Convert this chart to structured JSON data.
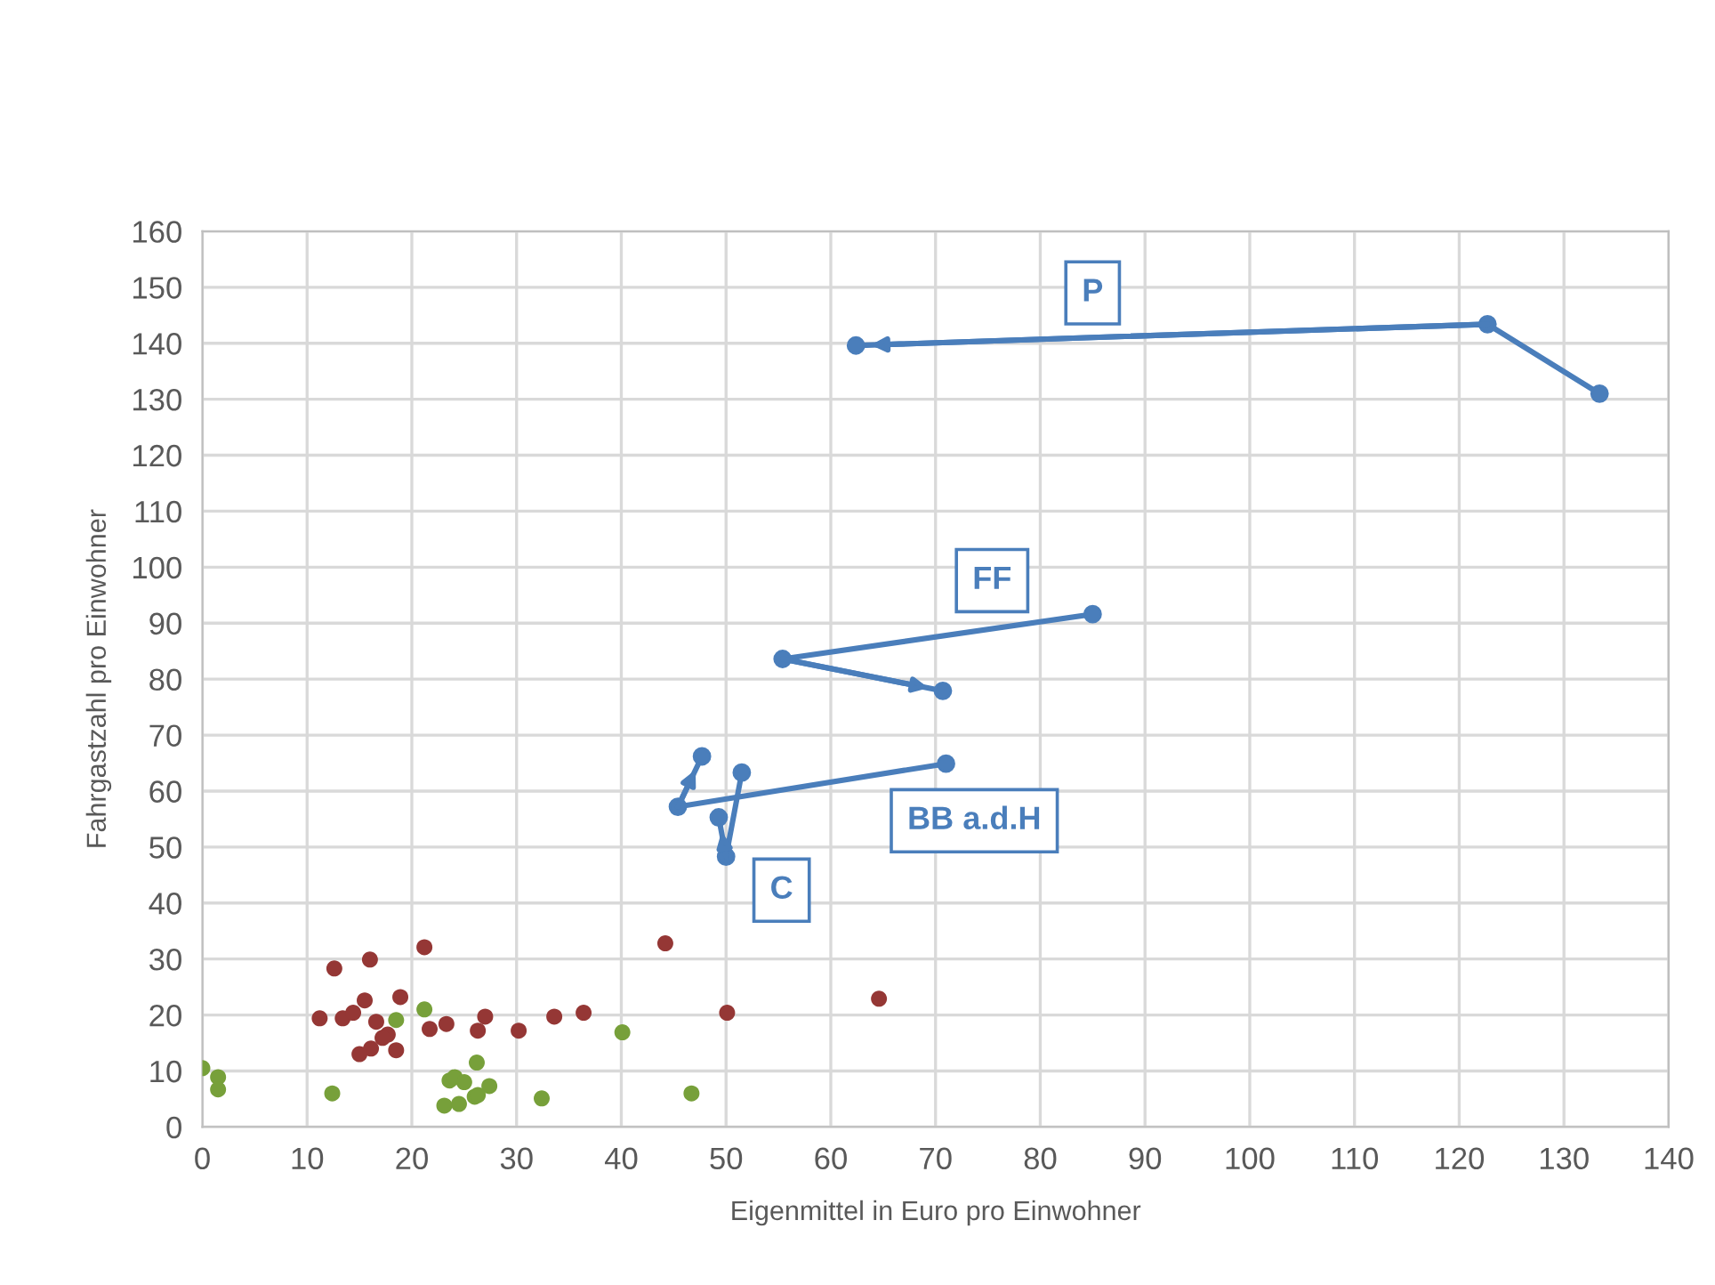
{
  "chart_data": {
    "type": "scatter",
    "xlabel": "Eigenmittel in Euro pro Einwohner",
    "ylabel": "Fahrgastzahl pro Einwohner",
    "xlim": [
      0,
      140
    ],
    "xticks": [
      0,
      10,
      20,
      30,
      40,
      50,
      60,
      70,
      80,
      90,
      100,
      110,
      120,
      130,
      140
    ],
    "ylim": [
      0,
      160
    ],
    "yticks": [
      0,
      10,
      20,
      30,
      40,
      50,
      60,
      70,
      80,
      90,
      100,
      110,
      120,
      130,
      140,
      150,
      160
    ],
    "grid": true,
    "marker": "circle",
    "series": [
      {
        "color": "#953735",
        "x": [
          11.2,
          12.6,
          16.0,
          21.2,
          13.4,
          14.4,
          15.5,
          18.9,
          16.6,
          17.7,
          17.2,
          16.1,
          15.0,
          18.5,
          21.7,
          23.3,
          27.0,
          26.3,
          30.2,
          33.6,
          36.4,
          44.2,
          50.1,
          64.6
        ],
        "values": [
          19.4,
          28.3,
          29.9,
          32.1,
          19.4,
          20.4,
          22.6,
          23.2,
          18.8,
          16.5,
          15.9,
          14.0,
          13.0,
          13.7,
          17.5,
          18.4,
          19.7,
          17.2,
          17.2,
          19.7,
          20.4,
          32.8,
          20.4,
          22.9
        ]
      },
      {
        "color": "#77a03a",
        "x": [
          0,
          1.5,
          1.5,
          12.4,
          18.5,
          21.2,
          26.2,
          23.6,
          24.1,
          25.0,
          27.4,
          26.0,
          26.3,
          23.1,
          24.5,
          32.4,
          40.1,
          46.7
        ],
        "values": [
          10.5,
          8.9,
          6.7,
          6.0,
          19.1,
          21.0,
          11.5,
          8.3,
          8.9,
          8.0,
          7.3,
          5.4,
          5.7,
          3.8,
          4.1,
          5.1,
          16.9,
          6.0
        ]
      },
      {
        "name": "P",
        "type": "line",
        "color": "#4a7ebb",
        "x": [
          133.4,
          122.7,
          62.4
        ],
        "values": [
          131.0,
          143.4,
          139.6
        ]
      },
      {
        "name": "FF",
        "type": "line",
        "color": "#4a7ebb",
        "x": [
          85.0,
          55.4,
          70.7
        ],
        "values": [
          91.6,
          83.6,
          77.9
        ]
      },
      {
        "name": "BB a.d.H",
        "type": "line",
        "color": "#4a7ebb",
        "x": [
          71.0,
          45.4,
          47.7
        ],
        "values": [
          64.9,
          57.2,
          66.2
        ]
      },
      {
        "name": "C",
        "type": "line",
        "color": "#4a7ebb",
        "x": [
          51.5,
          50.0,
          49.3
        ],
        "values": [
          63.3,
          48.3,
          55.3
        ]
      }
    ]
  }
}
